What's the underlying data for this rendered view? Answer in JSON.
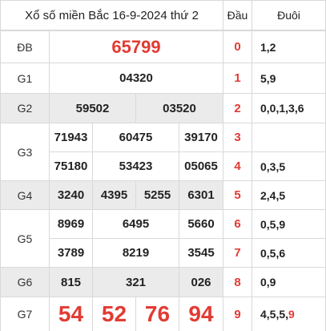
{
  "header": {
    "title": "Xổ số miền Bắc 16-9-2024 thứ 2",
    "dau_label": "Đầu",
    "duoi_label": "Đuôi"
  },
  "prizes": {
    "db": {
      "label": "ĐB",
      "numbers": [
        "65799"
      ]
    },
    "g1": {
      "label": "G1",
      "numbers": [
        "04320"
      ]
    },
    "g2": {
      "label": "G2",
      "numbers": [
        "59502",
        "03520"
      ]
    },
    "g3": {
      "label": "G3",
      "numbers": [
        "71943",
        "60475",
        "39170",
        "75180",
        "53423",
        "05065"
      ]
    },
    "g4": {
      "label": "G4",
      "numbers": [
        "3240",
        "4395",
        "5255",
        "6301"
      ]
    },
    "g5": {
      "label": "G5",
      "numbers": [
        "8969",
        "6495",
        "5660",
        "3789",
        "8219",
        "3545"
      ]
    },
    "g6": {
      "label": "G6",
      "numbers": [
        "815",
        "321",
        "026"
      ]
    },
    "g7": {
      "label": "G7",
      "numbers": [
        "54",
        "52",
        "76",
        "94"
      ]
    }
  },
  "dau_duoi": [
    {
      "dau": "0",
      "duoi": "1,2"
    },
    {
      "dau": "1",
      "duoi": "5,9"
    },
    {
      "dau": "2",
      "duoi": "0,0,1,3,6"
    },
    {
      "dau": "3",
      "duoi": ""
    },
    {
      "dau": "4",
      "duoi": "0,3,5"
    },
    {
      "dau": "5",
      "duoi": "2,4,5"
    },
    {
      "dau": "6",
      "duoi": "0,5,9"
    },
    {
      "dau": "7",
      "duoi": "0,5,6"
    },
    {
      "dau": "8",
      "duoi": "0,9"
    },
    {
      "dau": "9",
      "duoi": "4,5,5,",
      "duoi_highlight": "9"
    }
  ],
  "colors": {
    "accent": "#e23b33",
    "row_gray": "#ebebeb",
    "border": "#d9d9d9"
  }
}
